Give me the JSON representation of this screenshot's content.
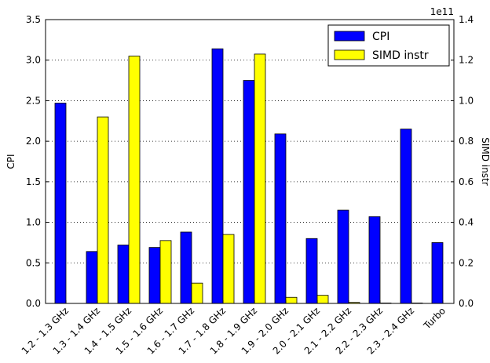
{
  "chart_data": {
    "type": "bar",
    "categories": [
      "1.2 - 1.3 GHz",
      "1.3 - 1.4 GHz",
      "1.4 - 1.5 GHz",
      "1.5 - 1.6 GHz",
      "1.6 - 1.7 GHz",
      "1.7 - 1.8 GHz",
      "1.8 - 1.9 GHz",
      "1.9 - 2.0 GHz",
      "2.0 - 2.1 GHz",
      "2.1 - 2.2 GHz",
      "2.2 - 2.3 GHz",
      "2.3 - 2.4 GHz",
      "Turbo"
    ],
    "series": [
      {
        "name": "CPI",
        "color": "#0000ff",
        "values": [
          2.47,
          0.64,
          0.72,
          0.69,
          0.88,
          3.14,
          2.75,
          2.09,
          0.8,
          1.15,
          1.07,
          2.15,
          0.75
        ]
      },
      {
        "name": "SIMD instr",
        "color": "#ffff00",
        "axis": "y2",
        "values": [
          0,
          0.92,
          1.22,
          0.31,
          0.1,
          0.34,
          1.23,
          0.03,
          0.04,
          0.005,
          0.002,
          0.002,
          0
        ]
      }
    ],
    "ylabel": "CPI",
    "y2label": "SIMD instr",
    "y2offset": "1e11",
    "ylim": [
      0,
      3.5
    ],
    "yticks": [
      {
        "value": 0,
        "label": "0.0"
      },
      0.5,
      {
        "value": 1,
        "label": "1.0"
      },
      1.5,
      {
        "value": 2,
        "label": "2.0"
      },
      2.5,
      {
        "value": 3,
        "label": "3.0"
      },
      3.5
    ],
    "y2lim": [
      0,
      1.4
    ],
    "y2ticks": [
      {
        "value": 0,
        "label": "0.0"
      },
      0.2,
      0.4,
      0.6,
      0.8,
      {
        "value": 1,
        "label": "1.0"
      },
      1.2,
      1.4
    ],
    "grid": true,
    "legend": "upper right"
  }
}
